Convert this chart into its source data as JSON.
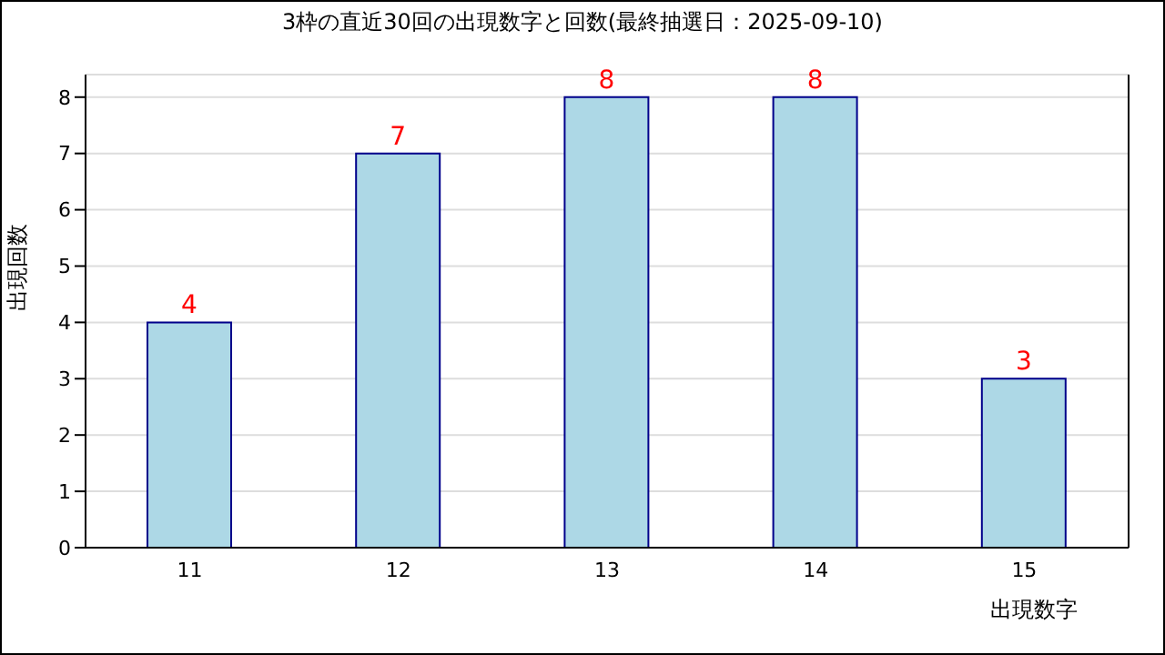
{
  "chart_data": {
    "type": "bar",
    "title": "3枠の直近30回の出現数字と回数(最終抽選日：2025-09-10)",
    "xlabel": "出現数字",
    "ylabel": "出現回数",
    "categories": [
      "11",
      "12",
      "13",
      "14",
      "15"
    ],
    "series": [
      {
        "color": "#add8e6",
        "values": [
          4,
          7,
          8,
          8,
          3
        ]
      }
    ],
    "ylim": [
      0,
      8.4
    ],
    "yticks": [
      0,
      1,
      2,
      3,
      4,
      5,
      6,
      7,
      8
    ],
    "grid": "y",
    "data_labels": true
  }
}
